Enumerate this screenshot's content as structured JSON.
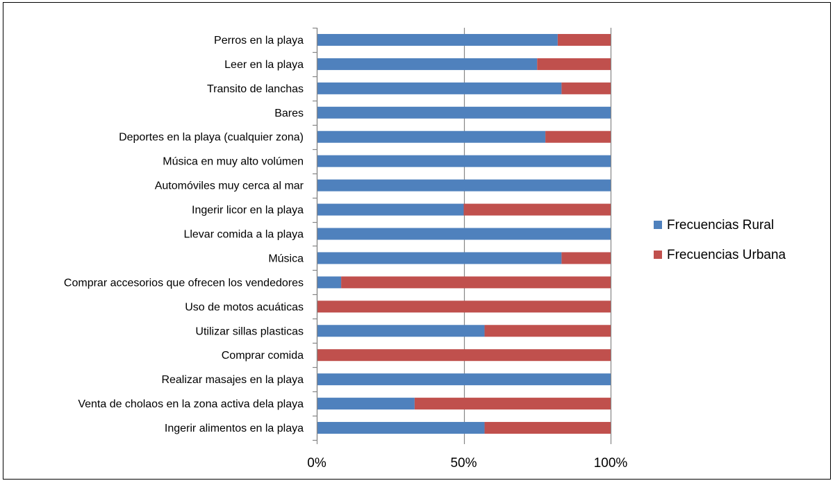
{
  "chart_data": {
    "type": "bar",
    "orientation": "horizontal",
    "stacked": "percent",
    "categories": [
      "Perros en la playa",
      "Leer en la playa",
      "Transito de lanchas",
      "Bares",
      "Deportes en la playa (cualquier zona)",
      "Música en muy alto volúmen",
      "Automóviles muy cerca al mar",
      "Ingerir licor en la playa",
      "Llevar comida a la playa",
      "Música",
      "Comprar accesorios que ofrecen los vendedores",
      "Uso de motos acuáticas",
      "Utilizar sillas plasticas",
      "Comprar comida",
      "Realizar masajes en la playa",
      "Venta de cholaos en la zona activa dela playa",
      "Ingerir alimentos en la playa"
    ],
    "series": [
      {
        "name": "Frecuencias Rural",
        "color": "#4f81bd",
        "values": [
          82,
          75,
          83.3,
          100,
          77.8,
          100,
          100,
          50,
          100,
          83.3,
          8.3,
          0,
          57.1,
          0,
          100,
          33.3,
          57.1
        ]
      },
      {
        "name": "Frecuencias Urbana",
        "color": "#c0504d",
        "values": [
          18,
          25,
          16.7,
          0,
          22.2,
          0,
          0,
          50,
          0,
          16.7,
          91.7,
          100,
          42.9,
          100,
          0,
          66.7,
          42.9
        ]
      }
    ],
    "x_ticks": [
      "0%",
      "50%",
      "100%"
    ],
    "xlim": [
      0,
      100
    ],
    "grid": "vertical",
    "legend": "right"
  }
}
